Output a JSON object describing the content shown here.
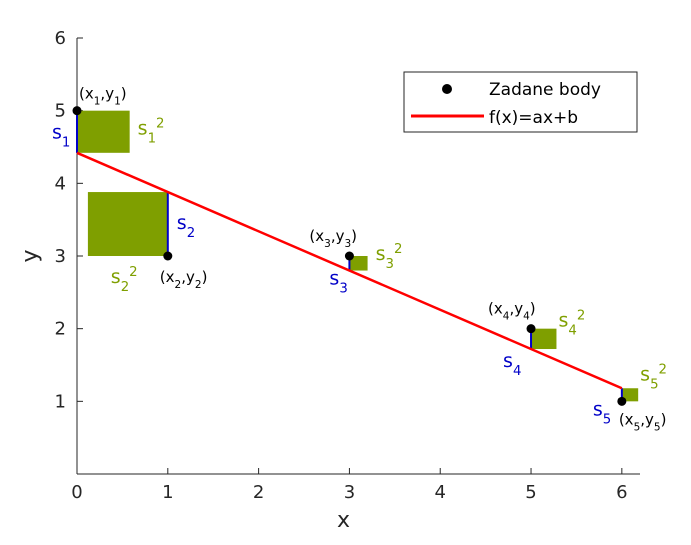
{
  "chart_data": {
    "type": "scatter",
    "xlabel": "x",
    "ylabel": "y",
    "xlim": [
      0,
      6.2
    ],
    "ylim": [
      0,
      6
    ],
    "xticks": [
      "0",
      "1",
      "2",
      "3",
      "4",
      "5",
      "6"
    ],
    "yticks": [
      "1",
      "2",
      "3",
      "4",
      "5",
      "6"
    ],
    "grid": false,
    "legend_position": "top-right",
    "points": [
      {
        "x": 0,
        "y": 5,
        "label": "x1,y1",
        "res": "s1",
        "sq": "s1"
      },
      {
        "x": 1,
        "y": 3,
        "label": "x2,y2",
        "res": "s2",
        "sq": "s2"
      },
      {
        "x": 3,
        "y": 3,
        "label": "x3,y3",
        "res": "s3",
        "sq": "s3"
      },
      {
        "x": 5,
        "y": 2,
        "label": "x4,y4",
        "res": "s4",
        "sq": "s4"
      },
      {
        "x": 6,
        "y": 1,
        "label": "x5,y5",
        "res": "s5",
        "sq": "s5"
      }
    ],
    "fit_line": {
      "a": -0.54,
      "b": 4.42
    },
    "legend": {
      "points_label": "Zadane body",
      "line_label": "f(x)=ax+b"
    },
    "colors": {
      "points": "#000000",
      "fit_line": "#ff0000",
      "residual": "#0000c8",
      "square": "#7f9f00"
    }
  }
}
